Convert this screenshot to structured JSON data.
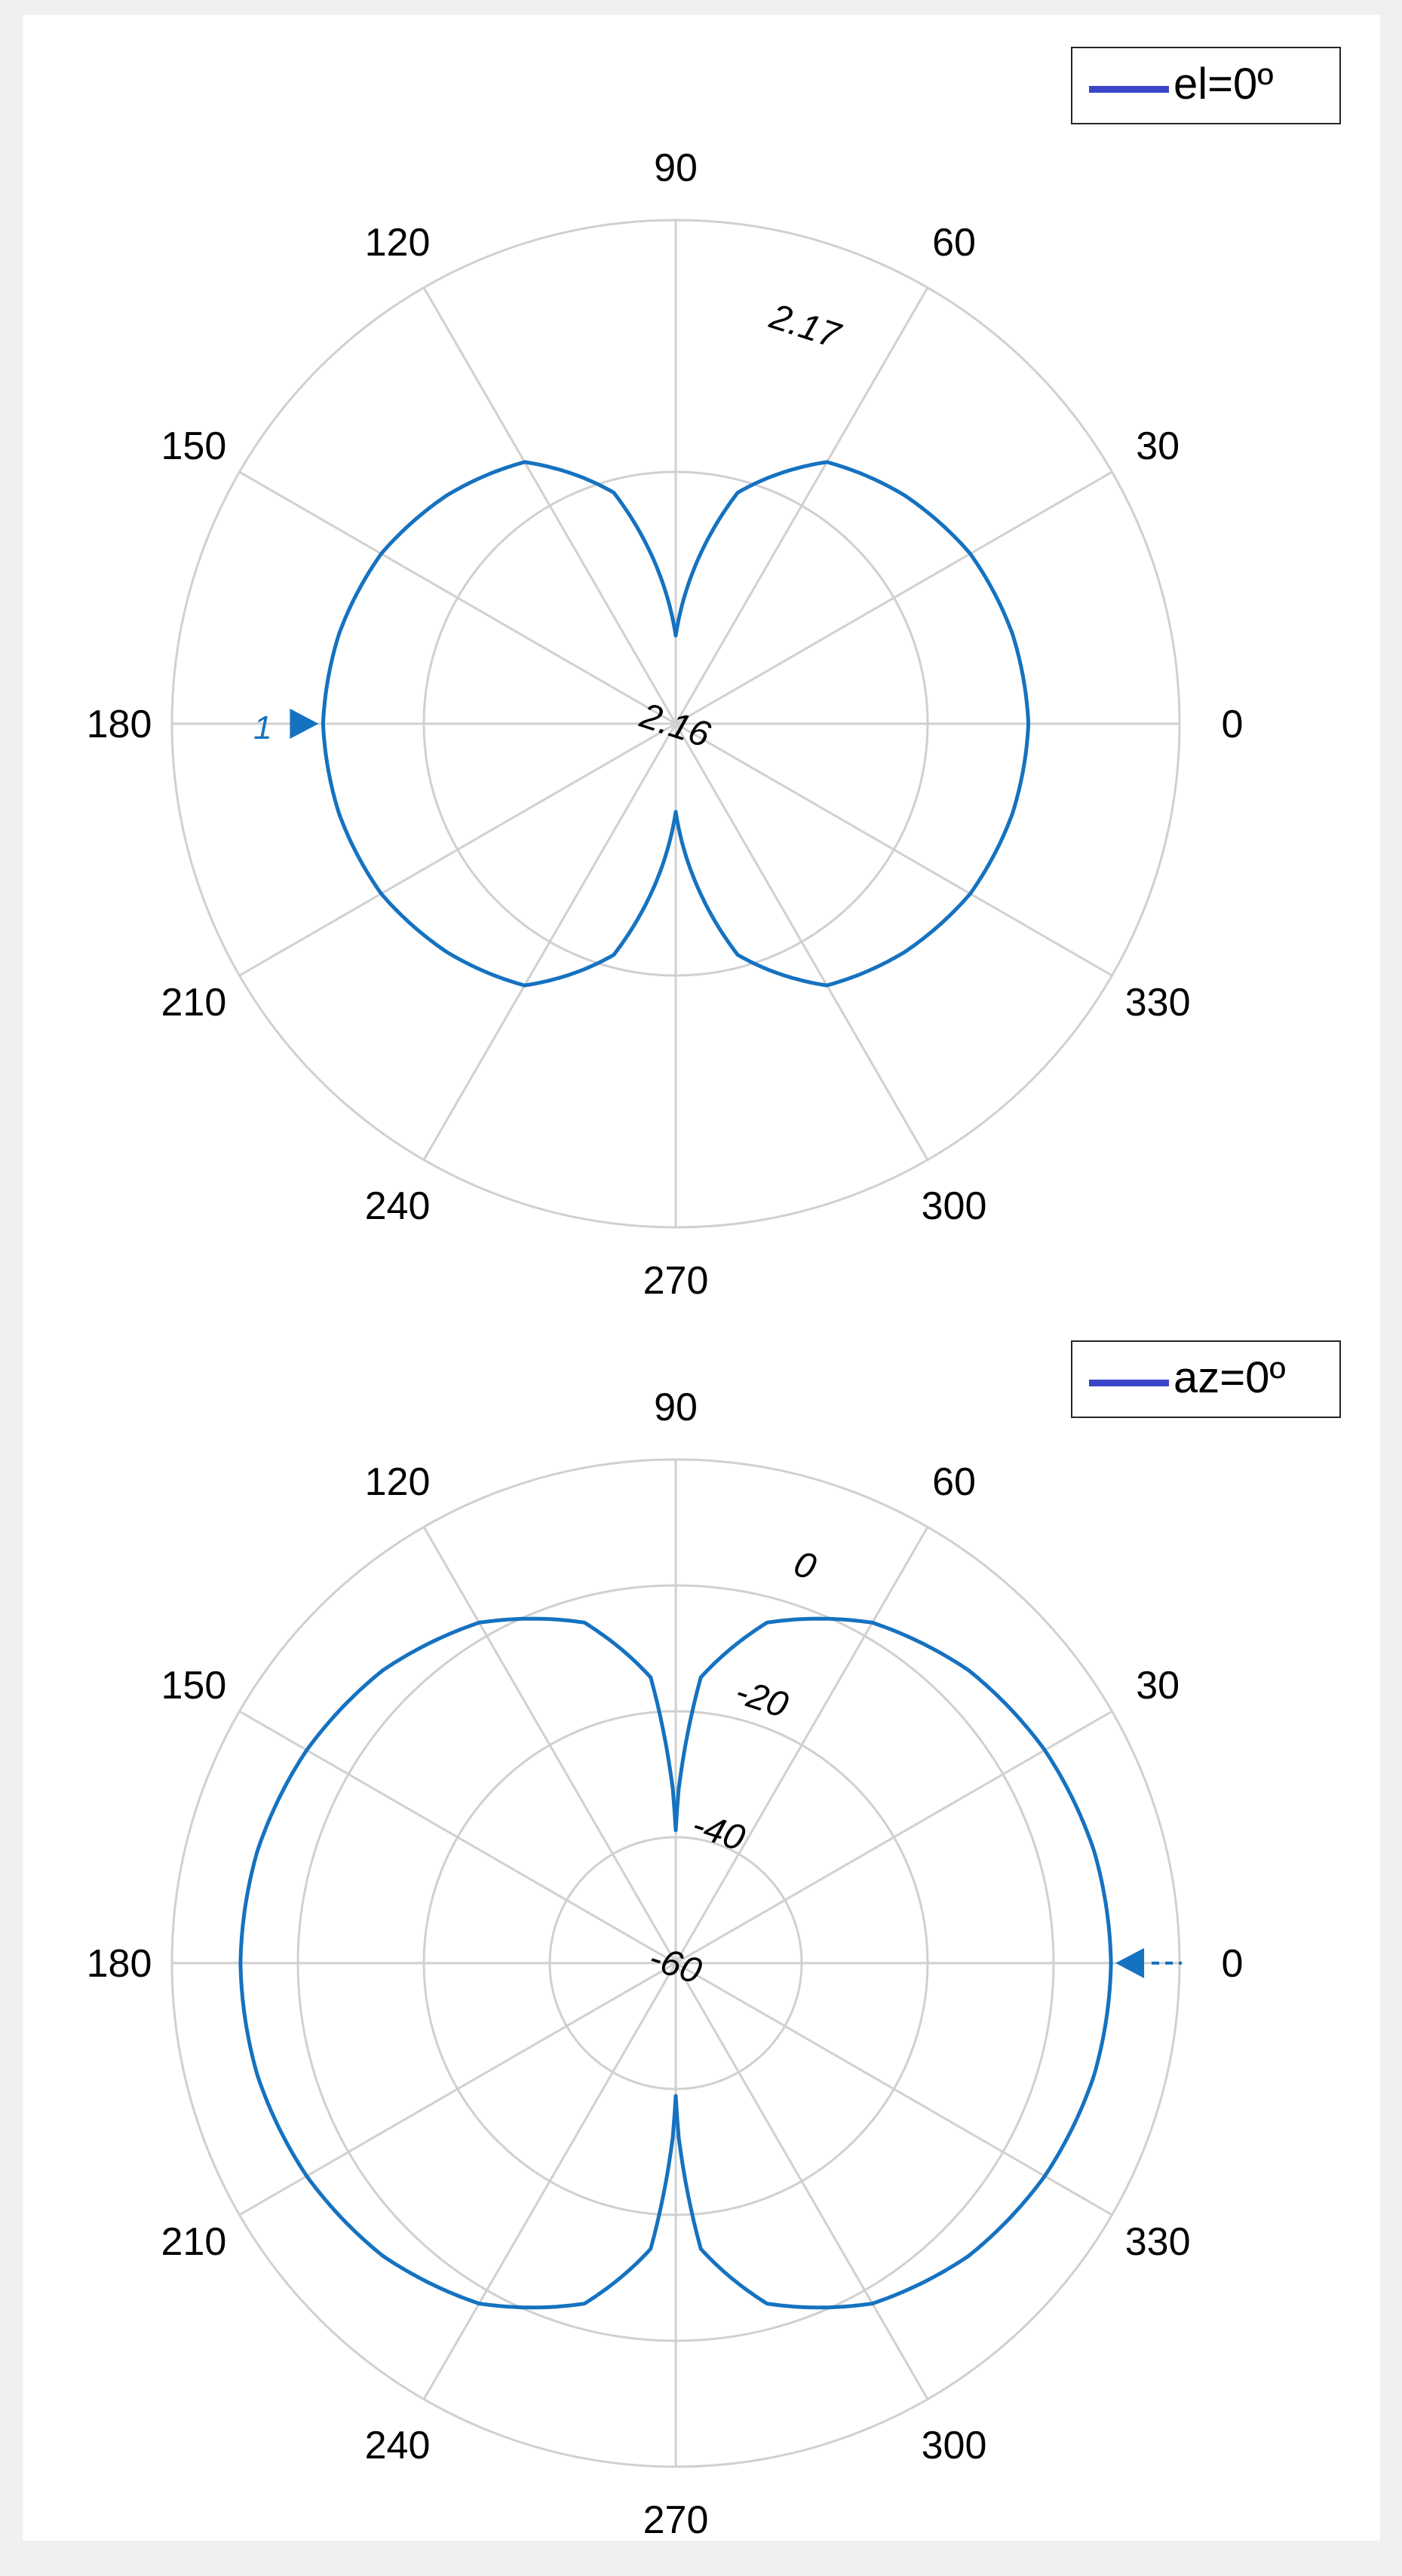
{
  "legend": {
    "top": "el=0º",
    "bottom": "az=0º"
  },
  "colors": {
    "background": "#f0f0f0",
    "axes_background": "#ffffff",
    "grid": "#d0d0d0",
    "trace": "#1572c0",
    "legend_line": "#3a46c8"
  },
  "chart_data": [
    {
      "type": "polar-line",
      "legend": "el=0º",
      "theta_ticks": [
        "0",
        "30",
        "60",
        "90",
        "120",
        "150",
        "180",
        "210",
        "240",
        "270",
        "300",
        "330"
      ],
      "r_ticks": [
        "2.16",
        "2.17"
      ],
      "rlim": [
        2.16,
        2.172
      ],
      "grid": true,
      "legend_location": "top-right",
      "peak_marker": {
        "theta": 180,
        "label": "1"
      },
      "series": [
        {
          "name": "el=0º",
          "theta": [
            0,
            15,
            30,
            45,
            60,
            75,
            90,
            105,
            120,
            135,
            150,
            165,
            180,
            195,
            210,
            225,
            240,
            255,
            270,
            285,
            300,
            315,
            330,
            345
          ],
          "r": [
            2.1684,
            2.1683,
            2.1681,
            2.1677,
            2.1672,
            2.1657,
            2.1621,
            2.1657,
            2.1672,
            2.1677,
            2.1681,
            2.1683,
            2.1684,
            2.1683,
            2.1681,
            2.1677,
            2.1672,
            2.1657,
            2.1621,
            2.1657,
            2.1672,
            2.1677,
            2.1681,
            2.1683
          ]
        }
      ]
    },
    {
      "type": "polar-line",
      "legend": "az=0º",
      "theta_ticks": [
        "0",
        "30",
        "60",
        "90",
        "120",
        "150",
        "180",
        "210",
        "240",
        "270",
        "300",
        "330"
      ],
      "r_ticks": [
        "-60",
        "-40",
        "-20",
        "0"
      ],
      "rlim": [
        -60,
        12
      ],
      "grid": true,
      "legend_location": "top-right",
      "peak_marker": {
        "theta": 0,
        "label": ""
      },
      "series": [
        {
          "name": "az=0º",
          "theta": [
            0,
            15,
            30,
            45,
            60,
            75,
            85,
            89,
            90,
            91,
            95,
            105,
            120,
            135,
            150,
            165,
            180,
            195,
            210,
            225,
            240,
            255,
            265,
            269,
            270,
            271,
            275,
            285,
            300,
            315,
            330,
            345
          ],
          "r": [
            2.2,
            1.9,
            0.9,
            -0.8,
            -3.8,
            -9.6,
            -19.0,
            -35.0,
            -41.0,
            -35.0,
            -19.0,
            -9.6,
            -3.8,
            -0.8,
            0.9,
            1.9,
            2.2,
            1.9,
            0.9,
            -0.8,
            -3.8,
            -9.6,
            -19.0,
            -35.0,
            -41.0,
            -35.0,
            -19.0,
            -9.6,
            -3.8,
            -0.8,
            0.9,
            1.9
          ]
        }
      ]
    }
  ]
}
